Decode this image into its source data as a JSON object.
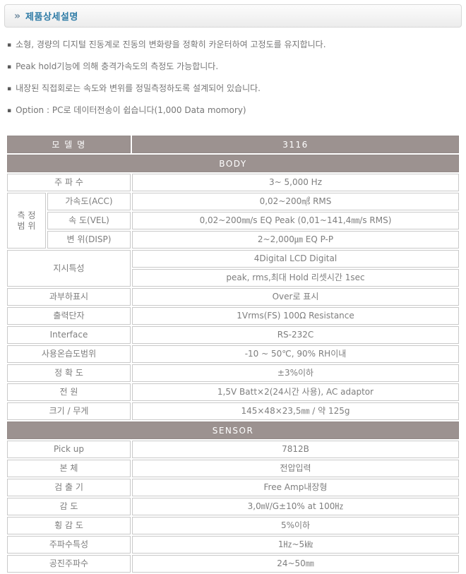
{
  "header": {
    "icon": "»",
    "title": "제품상세설명"
  },
  "bullets": [
    "소형, 경량의 디지털 진동계로 진동의 변화량을 정확히 카운터하여 고정도를 유지합니다.",
    "Peak hold기능에 의해 충격가속도의 측정도 가능합니다.",
    "내장된 직접회로는 속도와 변위를 정밀측정하도록 설계되어 있습니다.",
    "Option : PC로 데이터전송이 쉽습니다(1,000 Data momory)"
  ],
  "table": {
    "model_label": "모 델 명",
    "model_value": "3116",
    "sections": [
      {
        "band": "BODY",
        "rows": [
          {
            "label": "주 파 수",
            "colspan": 2,
            "value": "3~ 5,000 Hz"
          },
          {
            "label": "측 정\n범 위",
            "rowspan": 3,
            "colspan": 1,
            "sublabel": "가속도(ACC)",
            "value": "0,02~200㎨ RMS"
          },
          {
            "sublabel": "속   도(VEL)",
            "value": "0,02~200㎜/s EQ Peak (0,01~141,4㎜/s RMS)"
          },
          {
            "sublabel": "변 위(DISP)",
            "value": "2~2,000㎛ EQ P-P"
          },
          {
            "label": "지시특성",
            "rowspan": 2,
            "colspan": 2,
            "value": "4Digital LCD Digital"
          },
          {
            "value": "peak, rms,최대 Hold 리셋시간 1sec"
          },
          {
            "label": "과부하표시",
            "colspan": 2,
            "value": "Over로 표시"
          },
          {
            "label": "출력단자",
            "colspan": 2,
            "value": "1Vrms(FS) 100Ω Resistance"
          },
          {
            "label": "Interface",
            "colspan": 2,
            "value": "RS-232C"
          },
          {
            "label": "사용온습도범위",
            "colspan": 2,
            "value": "-10 ~ 50℃, 90% RH이내"
          },
          {
            "label": "정 확 도",
            "colspan": 2,
            "value": "±3%이하"
          },
          {
            "label": "전 원",
            "colspan": 2,
            "value": "1,5V Batt×2(24시간 사용), AC adaptor"
          },
          {
            "label": "크기 / 무게",
            "colspan": 2,
            "value": "145×48×23,5㎜ / 약 125g"
          }
        ]
      },
      {
        "band": "SENSOR",
        "rows": [
          {
            "label": "Pick up",
            "colspan": 2,
            "value": "7812B"
          },
          {
            "label": "본    체",
            "colspan": 2,
            "value": "전압입력"
          },
          {
            "label": "검 출 기",
            "colspan": 2,
            "value": "Free Amp내장형"
          },
          {
            "label": "감    도",
            "colspan": 2,
            "value": "3,0㎷/G±10% at 100㎐"
          },
          {
            "label": "횡 감 도",
            "colspan": 2,
            "value": "5%이하"
          },
          {
            "label": "주파수특성",
            "colspan": 2,
            "value": "1㎐~5㎑"
          },
          {
            "label": "공진주파수",
            "colspan": 2,
            "value": "24~50㎜"
          }
        ]
      }
    ]
  },
  "colors": {
    "title_text": "#2e7ba6",
    "band_bg": "#9c9290",
    "band_text": "#ffffff",
    "cell_text": "#7e7e7e",
    "cell_border": "#c9c9c9",
    "bullet_text": "#767676"
  }
}
